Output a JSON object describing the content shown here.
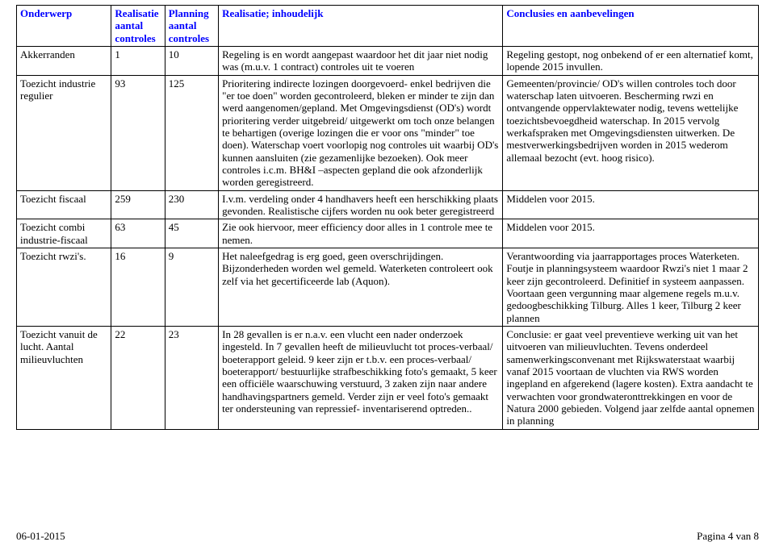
{
  "header": {
    "col1": "Onderwerp",
    "col2": "Realisatie aantal controles",
    "col3": "Planning aantal controles",
    "col4": "Realisatie; inhoudelijk",
    "col5": "Conclusies en aanbevelingen"
  },
  "rows": [
    {
      "c1": "Akkerranden",
      "c2": "1",
      "c3": "10",
      "c4": "Regeling is en wordt aangepast waardoor het dit jaar niet nodig was (m.u.v. 1 contract) controles uit te voeren",
      "c5": "Regeling gestopt, nog onbekend of er een alternatief komt, lopende 2015 invullen."
    },
    {
      "c1": "Toezicht industrie regulier",
      "c2": "93",
      "c3": "125",
      "c4": "Prioritering indirecte lozingen doorgevoerd- enkel bedrijven die \"er toe doen\" worden gecontroleerd, bleken er minder te zijn dan werd aangenomen/gepland. Met Omgevingsdienst (OD's) wordt prioritering verder uitgebreid/ uitgewerkt om toch onze belangen te behartigen (overige lozingen die er voor ons \"minder\" toe doen). Waterschap voert voorlopig nog controles uit waarbij OD's  kunnen aansluiten (zie gezamenlijke bezoeken). Ook meer controles i.c.m. BH&I –aspecten gepland die ook afzonderlijk worden geregistreerd.",
      "c5": "Gemeenten/provincie/ OD's  willen controles toch door waterschap laten uitvoeren. Bescherming rwzi en ontvangende oppervlaktewater nodig, tevens wettelijke toezichtsbevoegdheid waterschap. In 2015 vervolg werkafspraken met Omgevingsdiensten uitwerken. De mestverwerkingsbedrijven worden in 2015 wederom allemaal bezocht (evt. hoog risico)."
    },
    {
      "c1": "Toezicht fiscaal",
      "c2": "259",
      "c3": "230",
      "c4": "I.v.m. verdeling onder 4 handhavers heeft een herschikking plaats gevonden. Realistische cijfers worden nu ook beter geregistreerd",
      "c5": "Middelen voor 2015."
    },
    {
      "c1": "Toezicht combi industrie-fiscaal",
      "c2": "63",
      "c3": "45",
      "c4": "Zie ook hiervoor, meer efficiency door alles in 1 controle mee te nemen.",
      "c5": "Middelen voor 2015."
    },
    {
      "c1": "Toezicht rwzi's.",
      "c2": "16",
      "c3": "9",
      "c4": "Het naleefgedrag is erg goed, geen overschrijdingen. Bijzonderheden worden wel gemeld.  Waterketen controleert ook zelf via het gecertificeerde lab (Aquon).",
      "c5": "Verantwoording via jaarrapportages proces Waterketen. Foutje in planningsysteem waardoor Rwzi's niet 1 maar 2 keer zijn gecontroleerd. Definitief in systeem aanpassen. Voortaan geen vergunning maar algemene regels m.u.v. gedoogbeschikking Tilburg. Alles 1 keer, Tilburg 2 keer plannen"
    },
    {
      "c1": "Toezicht vanuit de lucht. Aantal milieuvluchten",
      "c2": "22",
      "c3": "23",
      "c4": "In 28 gevallen is er n.a.v. een vlucht een nader onderzoek ingesteld. In 7 gevallen heeft de milieuvlucht tot proces-verbaal/ boeterapport geleid. 9 keer zijn er t.b.v. een proces-verbaal/ boeterapport/ bestuurlijke strafbeschikking foto's gemaakt, 5 keer een officiële waarschuwing verstuurd, 3 zaken zijn naar andere handhavingspartners gemeld. Verder zijn er veel foto's gemaakt ter ondersteuning van repressief- inventariserend optreden..",
      "c5": "Conclusie: er gaat veel preventieve werking uit van het uitvoeren van milieuvluchten. Tevens onderdeel samenwerkingsconvenant met  Rijkswaterstaat waarbij vanaf 2015 voortaan de vluchten via RWS worden ingepland en afgerekend (lagere kosten). Extra aandacht te verwachten voor grondwateronttrekkingen en voor de Natura 2000 gebieden. Volgend jaar zelfde aantal opnemen in planning"
    }
  ],
  "footer": {
    "left": "06-01-2015",
    "right": "Pagina 4 van 8"
  }
}
